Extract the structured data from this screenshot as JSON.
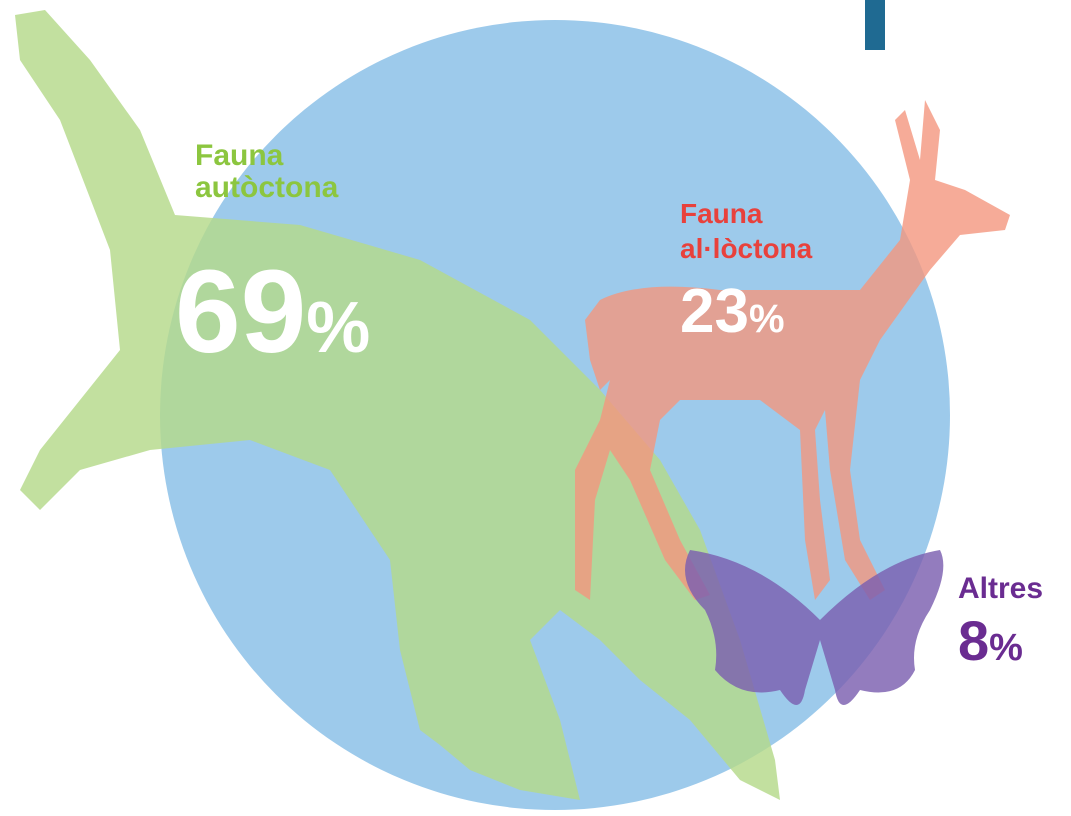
{
  "items": [
    {
      "lines": [
        "Fauna",
        "autòctona"
      ],
      "value": 69,
      "unit": "%"
    },
    {
      "lines": [
        "Fauna",
        "al·lòctona"
      ],
      "value": 23,
      "unit": "%"
    },
    {
      "lines": [
        "Altres"
      ],
      "value": 8,
      "unit": "%"
    }
  ]
}
